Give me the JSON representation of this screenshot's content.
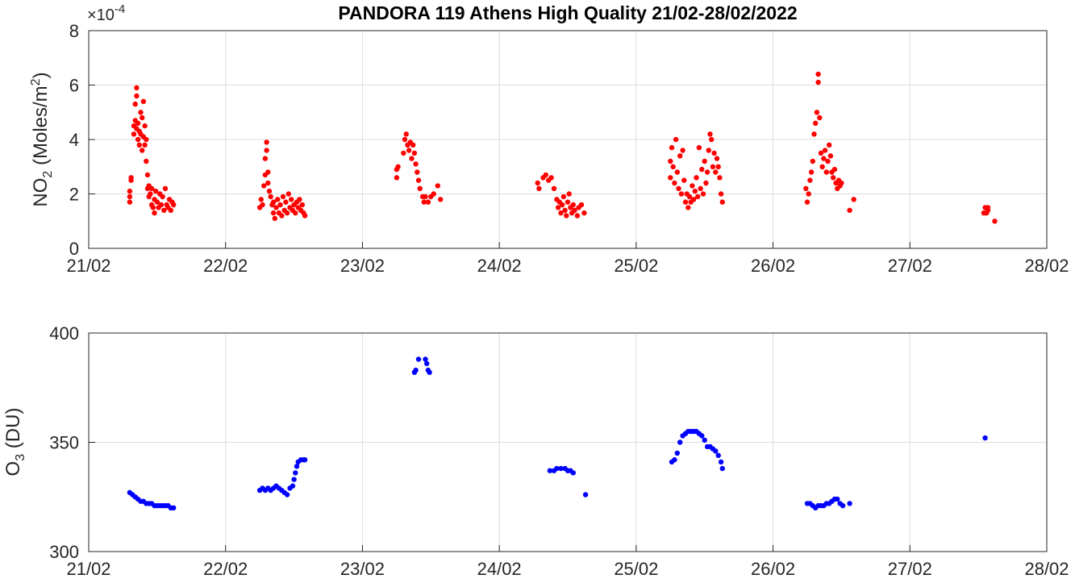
{
  "title": "PANDORA 119 Athens High Quality 21/02-28/02/2022",
  "chart_data": [
    {
      "type": "scatter",
      "color": "#ff0000",
      "ylabel_main": "NO",
      "ylabel_sub": "2",
      "ylabel_unit_open": " (Moles/m",
      "ylabel_unit_sup": "2",
      "ylabel_unit_close": ")",
      "multiplier_base": "×10",
      "multiplier_exp": "-4",
      "x_tick_labels": [
        "21/02",
        "22/02",
        "23/02",
        "24/02",
        "25/02",
        "26/02",
        "27/02",
        "28/02"
      ],
      "y_tick_labels": [
        "0",
        "2",
        "4",
        "6",
        "8"
      ],
      "xlim_days": [
        21,
        28
      ],
      "ylim": [
        0,
        8
      ],
      "grid": true,
      "points": [
        [
          21.3,
          1.7
        ],
        [
          21.3,
          1.9
        ],
        [
          21.3,
          2.1
        ],
        [
          21.31,
          2.5
        ],
        [
          21.31,
          2.6
        ],
        [
          21.33,
          4.2
        ],
        [
          21.33,
          4.5
        ],
        [
          21.34,
          4.7
        ],
        [
          21.34,
          5.3
        ],
        [
          21.35,
          5.9
        ],
        [
          21.35,
          5.6
        ],
        [
          21.35,
          4.4
        ],
        [
          21.36,
          4.0
        ],
        [
          21.36,
          4.6
        ],
        [
          21.37,
          4.3
        ],
        [
          21.37,
          3.8
        ],
        [
          21.38,
          5.0
        ],
        [
          21.38,
          4.2
        ],
        [
          21.39,
          4.8
        ],
        [
          21.39,
          3.6
        ],
        [
          21.4,
          4.1
        ],
        [
          21.4,
          5.4
        ],
        [
          21.41,
          4.5
        ],
        [
          21.41,
          3.8
        ],
        [
          21.42,
          4.0
        ],
        [
          21.42,
          3.2
        ],
        [
          21.43,
          2.7
        ],
        [
          21.43,
          2.2
        ],
        [
          21.44,
          1.9
        ],
        [
          21.44,
          2.3
        ],
        [
          21.45,
          2.0
        ],
        [
          21.46,
          1.6
        ],
        [
          21.46,
          2.2
        ],
        [
          21.47,
          1.5
        ],
        [
          21.48,
          1.8
        ],
        [
          21.48,
          1.3
        ],
        [
          21.49,
          2.1
        ],
        [
          21.5,
          1.7
        ],
        [
          21.51,
          1.5
        ],
        [
          21.52,
          2.0
        ],
        [
          21.53,
          1.6
        ],
        [
          21.54,
          1.9
        ],
        [
          21.55,
          1.4
        ],
        [
          21.56,
          2.2
        ],
        [
          21.57,
          1.6
        ],
        [
          21.58,
          1.5
        ],
        [
          21.59,
          1.8
        ],
        [
          21.6,
          1.4
        ],
        [
          21.61,
          1.7
        ],
        [
          21.62,
          1.6
        ],
        [
          22.25,
          1.5
        ],
        [
          22.26,
          1.8
        ],
        [
          22.27,
          1.6
        ],
        [
          22.28,
          2.3
        ],
        [
          22.29,
          2.7
        ],
        [
          22.29,
          3.3
        ],
        [
          22.3,
          3.6
        ],
        [
          22.3,
          3.9
        ],
        [
          22.31,
          2.8
        ],
        [
          22.31,
          2.4
        ],
        [
          22.32,
          2.1
        ],
        [
          22.33,
          1.9
        ],
        [
          22.34,
          1.6
        ],
        [
          22.35,
          1.3
        ],
        [
          22.35,
          1.7
        ],
        [
          22.36,
          1.1
        ],
        [
          22.37,
          1.5
        ],
        [
          22.38,
          1.8
        ],
        [
          22.39,
          1.3
        ],
        [
          22.4,
          1.6
        ],
        [
          22.41,
          1.2
        ],
        [
          22.42,
          1.9
        ],
        [
          22.43,
          1.4
        ],
        [
          22.44,
          1.7
        ],
        [
          22.45,
          1.3
        ],
        [
          22.46,
          2.0
        ],
        [
          22.47,
          1.5
        ],
        [
          22.48,
          1.8
        ],
        [
          22.49,
          1.4
        ],
        [
          22.5,
          1.6
        ],
        [
          22.51,
          1.3
        ],
        [
          22.52,
          1.7
        ],
        [
          22.53,
          1.5
        ],
        [
          22.54,
          1.8
        ],
        [
          22.55,
          1.4
        ],
        [
          22.56,
          1.6
        ],
        [
          22.57,
          1.3
        ],
        [
          22.58,
          1.2
        ],
        [
          23.25,
          2.6
        ],
        [
          23.25,
          2.9
        ],
        [
          23.26,
          3.0
        ],
        [
          23.3,
          3.5
        ],
        [
          23.31,
          4.0
        ],
        [
          23.32,
          4.2
        ],
        [
          23.33,
          3.8
        ],
        [
          23.34,
          3.6
        ],
        [
          23.35,
          3.9
        ],
        [
          23.36,
          3.3
        ],
        [
          23.37,
          3.8
        ],
        [
          23.38,
          3.5
        ],
        [
          23.39,
          3.1
        ],
        [
          23.4,
          2.8
        ],
        [
          23.41,
          2.5
        ],
        [
          23.42,
          2.2
        ],
        [
          23.44,
          1.9
        ],
        [
          23.45,
          1.7
        ],
        [
          23.46,
          1.9
        ],
        [
          23.48,
          1.7
        ],
        [
          23.5,
          1.9
        ],
        [
          23.52,
          2.0
        ],
        [
          23.55,
          2.3
        ],
        [
          23.57,
          1.8
        ],
        [
          24.28,
          2.4
        ],
        [
          24.29,
          2.2
        ],
        [
          24.32,
          2.6
        ],
        [
          24.34,
          2.7
        ],
        [
          24.36,
          2.5
        ],
        [
          24.38,
          2.6
        ],
        [
          24.4,
          2.2
        ],
        [
          24.42,
          1.8
        ],
        [
          24.43,
          1.5
        ],
        [
          24.44,
          1.7
        ],
        [
          24.45,
          1.3
        ],
        [
          24.46,
          1.6
        ],
        [
          24.47,
          1.9
        ],
        [
          24.48,
          1.4
        ],
        [
          24.49,
          1.2
        ],
        [
          24.5,
          1.7
        ],
        [
          24.51,
          2.0
        ],
        [
          24.52,
          1.5
        ],
        [
          24.53,
          1.3
        ],
        [
          24.54,
          1.6
        ],
        [
          24.55,
          1.4
        ],
        [
          24.57,
          1.2
        ],
        [
          24.58,
          1.5
        ],
        [
          24.6,
          1.6
        ],
        [
          24.62,
          1.3
        ],
        [
          25.25,
          2.6
        ],
        [
          25.25,
          3.2
        ],
        [
          25.26,
          3.7
        ],
        [
          25.27,
          3.0
        ],
        [
          25.28,
          2.4
        ],
        [
          25.29,
          4.0
        ],
        [
          25.3,
          2.8
        ],
        [
          25.31,
          2.2
        ],
        [
          25.32,
          3.4
        ],
        [
          25.33,
          2.0
        ],
        [
          25.34,
          3.6
        ],
        [
          25.35,
          2.5
        ],
        [
          25.36,
          1.7
        ],
        [
          25.37,
          2.0
        ],
        [
          25.38,
          1.5
        ],
        [
          25.39,
          1.9
        ],
        [
          25.4,
          1.7
        ],
        [
          25.41,
          2.3
        ],
        [
          25.42,
          1.8
        ],
        [
          25.43,
          2.1
        ],
        [
          25.44,
          2.6
        ],
        [
          25.45,
          1.9
        ],
        [
          25.46,
          3.7
        ],
        [
          25.47,
          2.2
        ],
        [
          25.48,
          2.9
        ],
        [
          25.49,
          2.0
        ],
        [
          25.5,
          3.2
        ],
        [
          25.51,
          2.4
        ],
        [
          25.52,
          2.8
        ],
        [
          25.53,
          3.6
        ],
        [
          25.54,
          4.2
        ],
        [
          25.55,
          4.0
        ],
        [
          25.56,
          3.0
        ],
        [
          25.57,
          3.5
        ],
        [
          25.58,
          2.8
        ],
        [
          25.59,
          3.3
        ],
        [
          25.6,
          3.0
        ],
        [
          25.61,
          2.6
        ],
        [
          25.62,
          2.0
        ],
        [
          25.63,
          1.7
        ],
        [
          26.24,
          2.2
        ],
        [
          26.25,
          1.7
        ],
        [
          26.26,
          2.0
        ],
        [
          26.27,
          2.5
        ],
        [
          26.28,
          2.8
        ],
        [
          26.29,
          3.2
        ],
        [
          26.3,
          4.2
        ],
        [
          26.31,
          4.6
        ],
        [
          26.32,
          5.0
        ],
        [
          26.33,
          6.1
        ],
        [
          26.33,
          6.4
        ],
        [
          26.34,
          4.8
        ],
        [
          26.35,
          3.5
        ],
        [
          26.36,
          3.0
        ],
        [
          26.37,
          3.3
        ],
        [
          26.38,
          3.6
        ],
        [
          26.39,
          2.8
        ],
        [
          26.4,
          3.2
        ],
        [
          26.41,
          3.8
        ],
        [
          26.42,
          3.4
        ],
        [
          26.43,
          2.8
        ],
        [
          26.44,
          2.6
        ],
        [
          26.45,
          2.9
        ],
        [
          26.46,
          2.4
        ],
        [
          26.47,
          2.2
        ],
        [
          26.48,
          2.5
        ],
        [
          26.49,
          2.3
        ],
        [
          26.5,
          2.4
        ],
        [
          26.56,
          1.4
        ],
        [
          26.59,
          1.8
        ],
        [
          27.54,
          1.3
        ],
        [
          27.55,
          1.5
        ],
        [
          27.56,
          1.3
        ],
        [
          27.57,
          1.4
        ],
        [
          27.57,
          1.5
        ],
        [
          27.62,
          1.0
        ]
      ]
    },
    {
      "type": "scatter",
      "color": "#0000ff",
      "ylabel_main": "O",
      "ylabel_sub": "3",
      "ylabel_unit_open": " (DU)",
      "x_tick_labels": [
        "21/02",
        "22/02",
        "23/02",
        "24/02",
        "25/02",
        "26/02",
        "27/02",
        "28/02"
      ],
      "y_tick_labels": [
        "300",
        "350",
        "400"
      ],
      "xlim_days": [
        21,
        28
      ],
      "ylim": [
        300,
        400
      ],
      "grid": true,
      "points": [
        [
          21.3,
          327
        ],
        [
          21.32,
          326
        ],
        [
          21.34,
          325
        ],
        [
          21.36,
          324
        ],
        [
          21.38,
          323
        ],
        [
          21.4,
          323
        ],
        [
          21.42,
          322
        ],
        [
          21.44,
          322
        ],
        [
          21.46,
          322
        ],
        [
          21.48,
          321
        ],
        [
          21.5,
          321
        ],
        [
          21.52,
          321
        ],
        [
          21.54,
          321
        ],
        [
          21.56,
          321
        ],
        [
          21.58,
          321
        ],
        [
          21.6,
          320
        ],
        [
          21.62,
          320
        ],
        [
          22.25,
          328
        ],
        [
          22.27,
          329
        ],
        [
          22.29,
          328
        ],
        [
          22.31,
          329
        ],
        [
          22.33,
          328
        ],
        [
          22.35,
          329
        ],
        [
          22.37,
          330
        ],
        [
          22.39,
          329
        ],
        [
          22.41,
          328
        ],
        [
          22.43,
          327
        ],
        [
          22.45,
          326
        ],
        [
          22.47,
          329
        ],
        [
          22.49,
          330
        ],
        [
          22.5,
          333
        ],
        [
          22.51,
          336
        ],
        [
          22.52,
          339
        ],
        [
          22.53,
          341
        ],
        [
          22.55,
          342
        ],
        [
          22.57,
          342
        ],
        [
          22.58,
          342
        ],
        [
          23.38,
          382
        ],
        [
          23.39,
          383
        ],
        [
          23.41,
          388
        ],
        [
          23.46,
          388
        ],
        [
          23.47,
          386
        ],
        [
          23.48,
          383
        ],
        [
          23.49,
          382
        ],
        [
          24.37,
          337
        ],
        [
          24.4,
          337
        ],
        [
          24.42,
          338
        ],
        [
          24.45,
          338
        ],
        [
          24.48,
          338
        ],
        [
          24.5,
          337
        ],
        [
          24.52,
          337
        ],
        [
          24.54,
          336
        ],
        [
          24.63,
          326
        ],
        [
          25.26,
          341
        ],
        [
          25.28,
          342
        ],
        [
          25.3,
          345
        ],
        [
          25.32,
          350
        ],
        [
          25.34,
          353
        ],
        [
          25.36,
          354
        ],
        [
          25.38,
          355
        ],
        [
          25.4,
          355
        ],
        [
          25.42,
          355
        ],
        [
          25.44,
          355
        ],
        [
          25.46,
          354
        ],
        [
          25.48,
          353
        ],
        [
          25.5,
          351
        ],
        [
          25.52,
          348
        ],
        [
          25.54,
          348
        ],
        [
          25.56,
          347
        ],
        [
          25.58,
          346
        ],
        [
          25.6,
          344
        ],
        [
          25.62,
          341
        ],
        [
          25.63,
          338
        ],
        [
          26.25,
          322
        ],
        [
          26.27,
          322
        ],
        [
          26.29,
          321
        ],
        [
          26.31,
          320
        ],
        [
          26.33,
          321
        ],
        [
          26.35,
          321
        ],
        [
          26.37,
          321
        ],
        [
          26.39,
          322
        ],
        [
          26.41,
          322
        ],
        [
          26.43,
          323
        ],
        [
          26.45,
          324
        ],
        [
          26.47,
          324
        ],
        [
          26.49,
          322
        ],
        [
          26.51,
          321
        ],
        [
          26.56,
          322
        ],
        [
          27.55,
          352
        ]
      ]
    }
  ]
}
